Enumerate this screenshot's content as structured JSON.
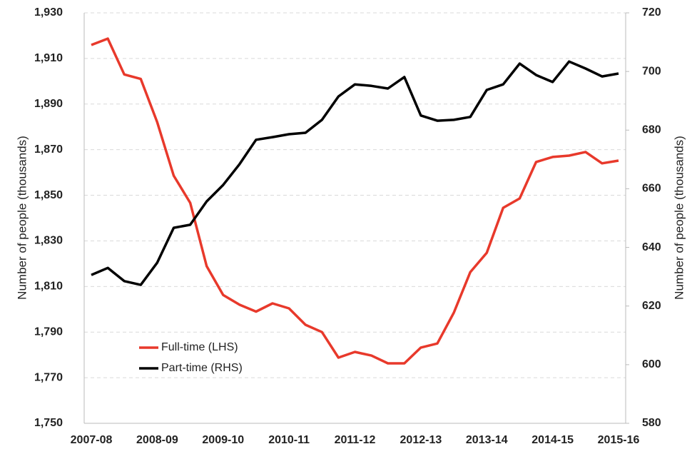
{
  "chart_data": {
    "type": "line",
    "ylabel": "Number of people (thousands)",
    "y2label": "Number of people (thousands)",
    "categories": [
      "2007-08",
      null,
      null,
      null,
      "2008-09",
      null,
      null,
      null,
      "2009-10",
      null,
      null,
      null,
      "2010-11",
      null,
      null,
      null,
      "2011-12",
      null,
      null,
      null,
      "2012-13",
      null,
      null,
      null,
      "2013-14",
      null,
      null,
      null,
      "2014-15",
      null,
      null,
      null,
      "2015-16"
    ],
    "series": [
      {
        "name": "Full-time (LHS)",
        "color": "#e8392b",
        "axis": "y",
        "values": [
          1915.9,
          1918.7,
          1903,
          1901,
          1882,
          1858.6,
          1846.7,
          1818.9,
          1806.3,
          1802,
          1799,
          1802.6,
          1800.4,
          1793.2,
          1790,
          1778.8,
          1781.3,
          1779.7,
          1776.3,
          1776.3,
          1783.2,
          1785,
          1798.5,
          1816.3,
          1824.8,
          1844.5,
          1848.6,
          1864.6,
          1866.8,
          1867.4,
          1869,
          1864,
          1865.2
        ]
      },
      {
        "name": "Part-time (RHS)",
        "color": "#000000",
        "axis": "y2",
        "values": [
          630.6,
          633,
          628.5,
          627.2,
          634.8,
          646.7,
          647.7,
          655.7,
          661.3,
          668.4,
          676.7,
          677.6,
          678.6,
          679.1,
          683.5,
          691.5,
          695.6,
          695.1,
          694.2,
          698.1,
          685,
          683.2,
          683.5,
          684.5,
          693.7,
          695.6,
          702.7,
          698.8,
          696.4,
          703.4,
          701,
          698.3,
          699.3
        ]
      }
    ],
    "ylim": [
      1750,
      1930
    ],
    "yticks": [
      {
        "value": 1750,
        "label": "1,750"
      },
      {
        "value": 1770,
        "label": "1,770"
      },
      {
        "value": 1790,
        "label": "1,790"
      },
      {
        "value": 1810,
        "label": "1,810"
      },
      {
        "value": 1830,
        "label": "1,830"
      },
      {
        "value": 1850,
        "label": "1,850"
      },
      {
        "value": 1870,
        "label": "1,870"
      },
      {
        "value": 1890,
        "label": "1,890"
      },
      {
        "value": 1910,
        "label": "1,910"
      },
      {
        "value": 1930,
        "label": "1,930"
      }
    ],
    "y2lim": [
      580,
      720
    ],
    "y2ticks": [
      580,
      600,
      620,
      640,
      660,
      680,
      700,
      720
    ],
    "grid": true,
    "legend": "lower left"
  }
}
